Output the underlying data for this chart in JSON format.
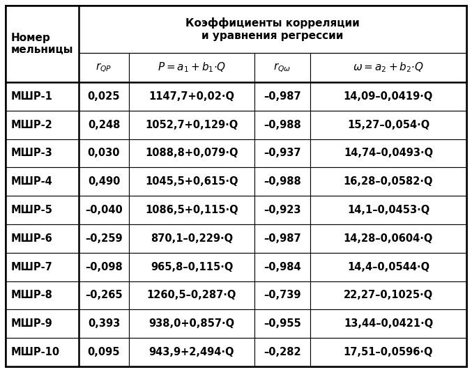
{
  "title_line1": "Коэффициенты корреляции",
  "title_line2": "и уравнения регрессии",
  "col_header_1": "r_{QP}",
  "col_header_2": "P = a_1 + b_1·Q",
  "col_header_3": "r_{Qω}",
  "col_header_4": "ω = a_2 + b_2·Q",
  "row_header": "Номер\nмельницы",
  "rows": [
    [
      "МШР-1",
      "0,025",
      "1147,7+0,02·Q",
      "–0,987",
      "14,09–0,0419·Q"
    ],
    [
      "МШР-2",
      "0,248",
      "1052,7+0,129·Q",
      "–0,988",
      "15,27–0,054·Q"
    ],
    [
      "МШР-3",
      "0,030",
      "1088,8+0,079·Q",
      "–0,937",
      "14,74–0,0493·Q"
    ],
    [
      "МШР-4",
      "0,490",
      "1045,5+0,615·Q",
      "–0,988",
      "16,28–0,0582·Q"
    ],
    [
      "МШР-5",
      "–0,040",
      "1086,5+0,115·Q",
      "–0,923",
      "14,1–0,0453·Q"
    ],
    [
      "МШР-6",
      "–0,259",
      "870,1–0,229·Q",
      "–0,987",
      "14,28–0,0604·Q"
    ],
    [
      "МШР-7",
      "–0,098",
      "965,8–0,115·Q",
      "–0,984",
      "14,4–0,0544·Q"
    ],
    [
      "МШР-8",
      "–0,265",
      "1260,5–0,287·Q",
      "–0,739",
      "22,27–0,1025·Q"
    ],
    [
      "МШР-9",
      "0,393",
      "938,0+0,857·Q",
      "–0,955",
      "13,44–0,0421·Q"
    ],
    [
      "МШР-10",
      "0,095",
      "943,9+2,494·Q",
      "–0,282",
      "17,51–0,0596·Q"
    ]
  ],
  "bg_color": "#ffffff",
  "border_color": "#000000",
  "text_color": "#000000",
  "header_bg": "#ffffff"
}
